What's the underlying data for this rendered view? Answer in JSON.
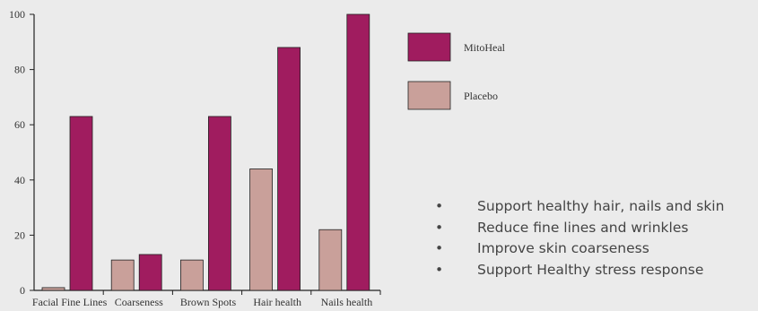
{
  "chart_data": {
    "type": "bar",
    "categories": [
      "Facial Fine Lines",
      "Coarseness",
      "Brown Spots",
      "Hair health",
      "Nails health"
    ],
    "series": [
      {
        "name": "Placebo",
        "values": [
          1,
          11,
          11,
          44,
          22
        ]
      },
      {
        "name": "MitoHeal",
        "values": [
          63,
          13,
          63,
          88,
          100
        ]
      }
    ],
    "ylim": [
      0,
      100
    ],
    "yticks": [
      0,
      20,
      40,
      60,
      80,
      100
    ],
    "title": "",
    "xlabel": "",
    "ylabel": "",
    "legend": [
      "MitoHeal",
      "Placebo"
    ],
    "legend_position": "top-right",
    "grid": false,
    "colors": {
      "MitoHeal": "#a01c5f",
      "Placebo": "#c9a09a"
    }
  },
  "bullets": [
    "Support healthy hair, nails and skin",
    "Reduce fine lines and wrinkles",
    "Improve skin coarseness",
    "Support Healthy stress response"
  ]
}
